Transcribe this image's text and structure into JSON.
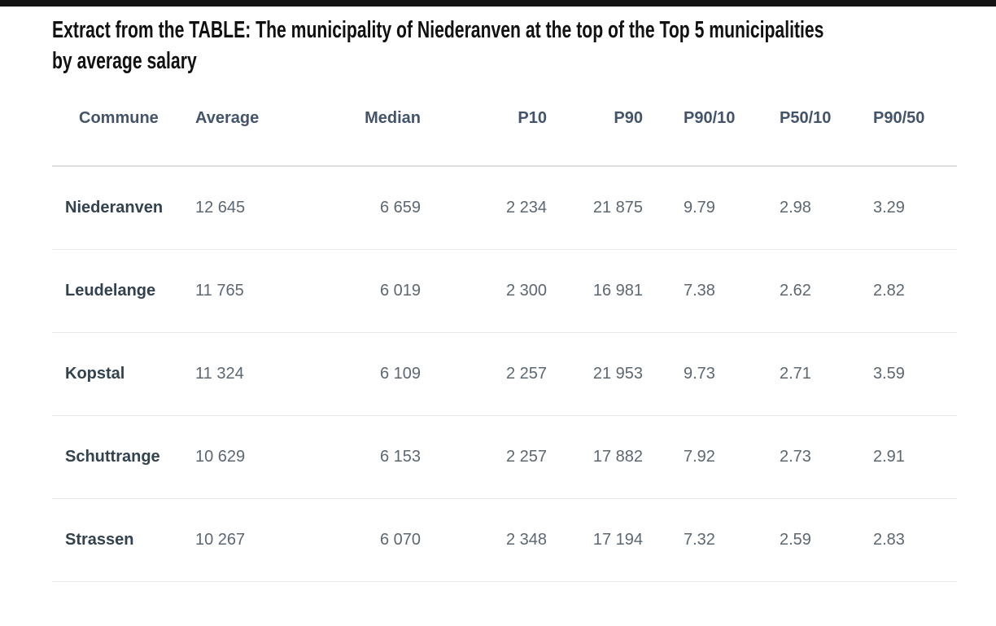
{
  "title": {
    "full": "Extract from the TABLE: The municipality of Niederanven at the top of the Top 5 municipalities by average salary",
    "line1": "Extract from the TABLE: The municipality of Niederanven at the top of the Top 5 municipalities",
    "line2": "by average salary"
  },
  "chart_data": {
    "type": "table",
    "title": "Extract from the TABLE: The municipality of Niederanven at the top of the Top 5 municipalities by average salary",
    "columns": [
      {
        "key": "commune",
        "label": "Commune"
      },
      {
        "key": "average",
        "label": "Average"
      },
      {
        "key": "median",
        "label": "Median"
      },
      {
        "key": "p10",
        "label": "P10"
      },
      {
        "key": "p90",
        "label": "P90"
      },
      {
        "key": "p90_10",
        "label": "P90/10"
      },
      {
        "key": "p50_10",
        "label": "P50/10"
      },
      {
        "key": "p90_50",
        "label": "P90/50"
      }
    ],
    "rows": [
      {
        "commune": "Niederanven",
        "average": "12 645",
        "median": "6 659",
        "p10": "2 234",
        "p90": "21 875",
        "p90_10": "9.79",
        "p50_10": "2.98",
        "p90_50": "3.29"
      },
      {
        "commune": "Leudelange",
        "average": "11 765",
        "median": "6 019",
        "p10": "2 300",
        "p90": "16 981",
        "p90_10": "7.38",
        "p50_10": "2.62",
        "p90_50": "2.82"
      },
      {
        "commune": "Kopstal",
        "average": "11 324",
        "median": "6 109",
        "p10": "2 257",
        "p90": "21 953",
        "p90_10": "9.73",
        "p50_10": "2.71",
        "p90_50": "3.59"
      },
      {
        "commune": "Schuttrange",
        "average": "10 629",
        "median": "6 153",
        "p10": "2 257",
        "p90": "17 882",
        "p90_10": "7.92",
        "p50_10": "2.73",
        "p90_50": "2.91"
      },
      {
        "commune": "Strassen",
        "average": "10 267",
        "median": "6 070",
        "p10": "2 348",
        "p90": "17 194",
        "p90_10": "7.32",
        "p50_10": "2.59",
        "p90_50": "2.83"
      }
    ]
  },
  "colors": {
    "header_text": "#44546a",
    "row_label": "#33424f",
    "cell_text": "#5d6771",
    "divider": "#e8e8e8",
    "header_divider": "#dfdfdf",
    "top_bar": "#141414",
    "background": "#ffffff",
    "title": "#111111"
  }
}
